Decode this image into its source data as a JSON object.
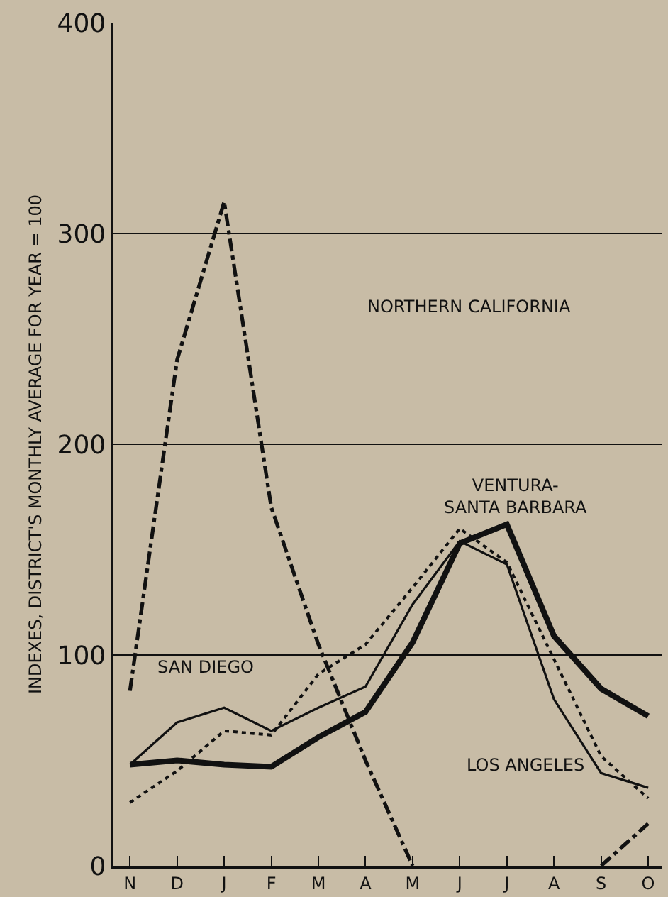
{
  "chart_data": {
    "type": "line",
    "ylabel": "INDEXES, DISTRICT'S MONTHLY AVERAGE FOR YEAR = 100",
    "categories": [
      "N",
      "D",
      "J",
      "F",
      "M",
      "A",
      "M",
      "J",
      "J",
      "A",
      "S",
      "O"
    ],
    "series": [
      {
        "color": "#111111",
        "line_style": "solid",
        "values": [
          48,
          50,
          48,
          47,
          61,
          73,
          106,
          153,
          162,
          109,
          84,
          71
        ]
      },
      {
        "color": "#111111",
        "line_style": "solid",
        "values": [
          48,
          68,
          75,
          64,
          75,
          85,
          124,
          154,
          143,
          79,
          44,
          37
        ]
      },
      {
        "color": "#111111",
        "line_style": "dotted",
        "values": [
          30,
          45,
          64,
          62,
          91,
          105,
          132,
          160,
          144,
          98,
          52,
          32
        ]
      },
      {
        "color": "#111111",
        "line_style": "dashdot",
        "values": [
          83,
          240,
          315,
          170,
          105,
          50,
          0,
          null,
          null,
          null,
          0,
          20
        ]
      }
    ],
    "annotations": [
      "VENTURA-\nSANTA BARBARA",
      "LOS ANGELES",
      "SAN DIEGO",
      "NORTHERN CALIFORNIA"
    ],
    "ylim": [
      0,
      400
    ],
    "yticks": [
      0,
      100,
      200,
      300,
      400
    ],
    "grid": "y"
  }
}
